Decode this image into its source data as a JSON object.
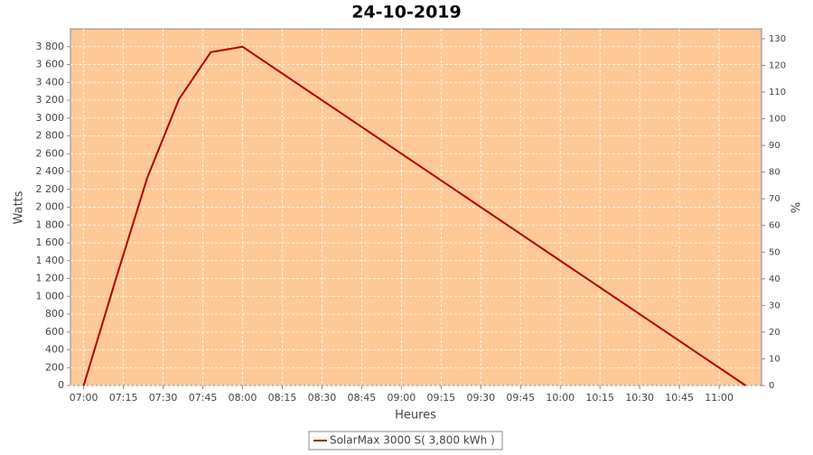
{
  "chart_data": {
    "type": "line",
    "title": "24-10-2019",
    "x_label": "Heures",
    "y_label": "Watts",
    "y2_label": "%",
    "x": [
      "07:00",
      "07:12",
      "07:24",
      "07:36",
      "07:48",
      "08:00",
      "11:10"
    ],
    "series": [
      {
        "name": "SolarMax 3000 S( 3,800 kWh )",
        "color": "#b00000",
        "values": [
          0,
          1180,
          2330,
          3212,
          3739,
          3800,
          0
        ]
      }
    ],
    "xlim": [
      "06:55",
      "11:16"
    ],
    "xticks": [
      "07:00",
      "07:15",
      "07:30",
      "07:45",
      "08:00",
      "08:15",
      "08:30",
      "08:45",
      "09:00",
      "09:15",
      "09:30",
      "09:45",
      "10:00",
      "10:15",
      "10:30",
      "10:45",
      "11:00"
    ],
    "ylim": [
      0,
      4000
    ],
    "yticks": [
      0,
      200,
      400,
      600,
      800,
      {
        "value": 1000,
        "label": "1 000"
      },
      {
        "value": 1200,
        "label": "1 200"
      },
      {
        "value": 1400,
        "label": "1 400"
      },
      {
        "value": 1600,
        "label": "1 600"
      },
      {
        "value": 1800,
        "label": "1 800"
      },
      {
        "value": 2000,
        "label": "2 000"
      },
      {
        "value": 2200,
        "label": "2 200"
      },
      {
        "value": 2400,
        "label": "2 400"
      },
      {
        "value": 2600,
        "label": "2 600"
      },
      {
        "value": 2800,
        "label": "2 800"
      },
      {
        "value": 3000,
        "label": "3 000"
      },
      {
        "value": 3200,
        "label": "3 200"
      },
      {
        "value": 3400,
        "label": "3 400"
      },
      {
        "value": 3600,
        "label": "3 600"
      },
      {
        "value": 3800,
        "label": "3 800"
      }
    ],
    "y2lim": [
      0,
      133.7
    ],
    "y2ticks": [
      0,
      10,
      20,
      30,
      40,
      50,
      60,
      70,
      80,
      90,
      100,
      110,
      120,
      130
    ],
    "grid": true,
    "background": "#ffc997"
  }
}
